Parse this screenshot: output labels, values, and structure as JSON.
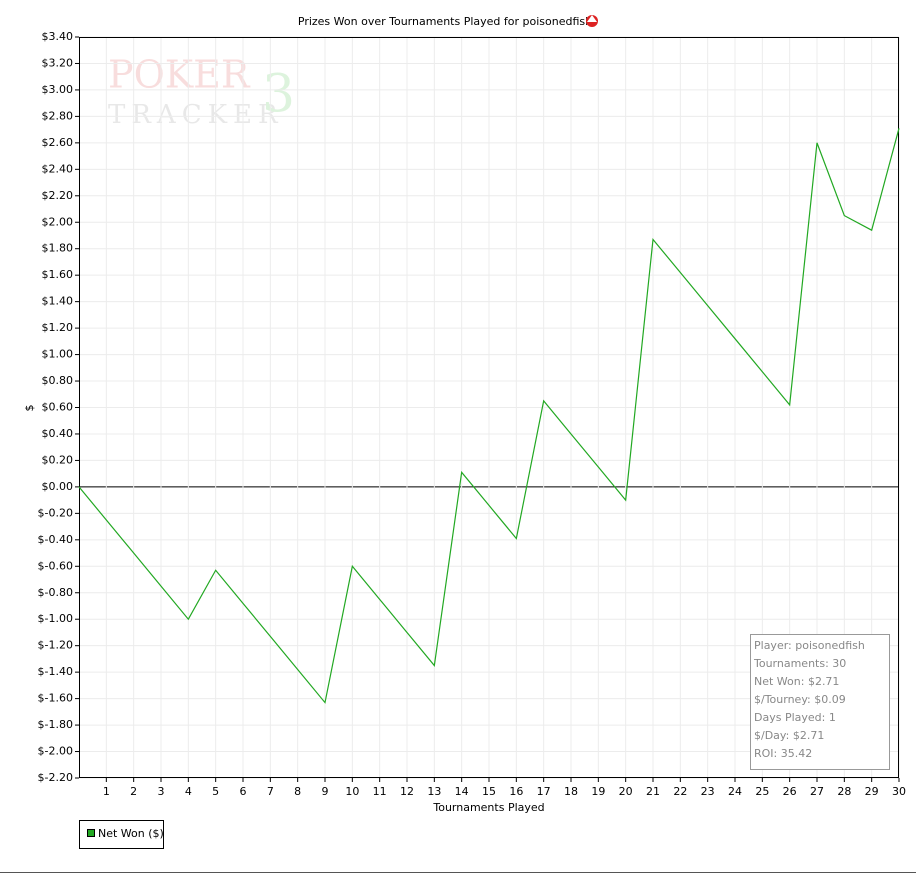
{
  "chart_data": {
    "type": "line",
    "title": "Prizes Won over Tournaments Played for poisonedfish",
    "x_label": "Tournaments Played",
    "y_label": "$",
    "x": [
      0,
      1,
      2,
      3,
      4,
      5,
      6,
      7,
      8,
      9,
      10,
      11,
      12,
      13,
      14,
      15,
      16,
      17,
      18,
      19,
      20,
      21,
      22,
      23,
      24,
      25,
      26,
      27,
      28,
      29,
      30
    ],
    "series": [
      {
        "name": "Net Won ($)",
        "color": "#22a822",
        "values": [
          0,
          -0.25,
          -0.5,
          -0.75,
          -1.0,
          -0.63,
          -0.88,
          -1.13,
          -1.38,
          -1.63,
          -0.6,
          -0.85,
          -1.1,
          -1.35,
          0.11,
          -0.14,
          -0.39,
          0.65,
          0.4,
          0.15,
          -0.1,
          1.87,
          1.62,
          1.37,
          1.12,
          0.87,
          0.62,
          2.6,
          2.05,
          1.94,
          2.71
        ]
      }
    ],
    "xlim": [
      0,
      30
    ],
    "xticks": [
      1,
      2,
      3,
      4,
      5,
      6,
      7,
      8,
      9,
      10,
      11,
      12,
      13,
      14,
      15,
      16,
      17,
      18,
      19,
      20,
      21,
      22,
      23,
      24,
      25,
      26,
      27,
      28,
      29,
      30
    ],
    "ylim": [
      -2.2,
      3.4
    ],
    "yticks": [
      {
        "value": 3.4,
        "label": "$3.40"
      },
      {
        "value": 3.2,
        "label": "$3.20"
      },
      {
        "value": 3.0,
        "label": "$3.00"
      },
      {
        "value": 2.8,
        "label": "$2.80"
      },
      {
        "value": 2.6,
        "label": "$2.60"
      },
      {
        "value": 2.4,
        "label": "$2.40"
      },
      {
        "value": 2.2,
        "label": "$2.20"
      },
      {
        "value": 2.0,
        "label": "$2.00"
      },
      {
        "value": 1.8,
        "label": "$1.80"
      },
      {
        "value": 1.6,
        "label": "$1.60"
      },
      {
        "value": 1.4,
        "label": "$1.40"
      },
      {
        "value": 1.2,
        "label": "$1.20"
      },
      {
        "value": 1.0,
        "label": "$1.00"
      },
      {
        "value": 0.8,
        "label": "$0.80"
      },
      {
        "value": 0.6,
        "label": "$0.60"
      },
      {
        "value": 0.4,
        "label": "$0.40"
      },
      {
        "value": 0.2,
        "label": "$0.20"
      },
      {
        "value": 0,
        "label": "$0.00"
      },
      {
        "value": -0.2,
        "label": "$-0.20"
      },
      {
        "value": -0.4,
        "label": "$-0.40"
      },
      {
        "value": -0.6,
        "label": "$-0.60"
      },
      {
        "value": -0.8,
        "label": "$-0.80"
      },
      {
        "value": -1.0,
        "label": "$-1.00"
      },
      {
        "value": -1.2,
        "label": "$-1.20"
      },
      {
        "value": -1.4,
        "label": "$-1.40"
      },
      {
        "value": -1.6,
        "label": "$-1.60"
      },
      {
        "value": -1.8,
        "label": "$-1.80"
      },
      {
        "value": -2.0,
        "label": "$-2.00"
      },
      {
        "value": -2.2,
        "label": "$-2.20"
      }
    ],
    "grid": true,
    "stats": [
      "Player: poisonedfish",
      "Tournaments: 30",
      "Net Won: $2.71",
      "$/Tourney: $0.09",
      "Days Played: 1",
      "$/Day: $2.71",
      "ROI: 35.42"
    ],
    "watermark": {
      "top": "POKER",
      "bottom": "TRACKER",
      "badge": "3"
    }
  }
}
